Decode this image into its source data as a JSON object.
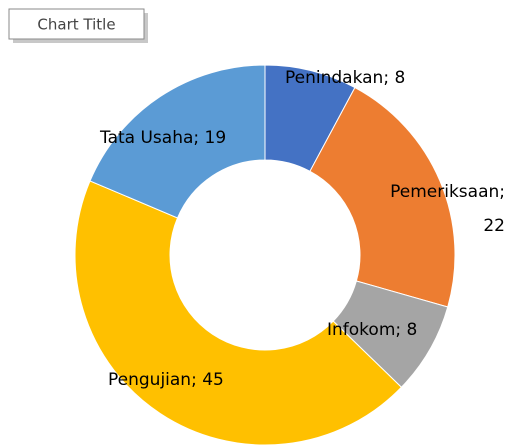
{
  "chart_data": {
    "type": "donut",
    "title": "Chart Title",
    "categories": [
      "Penindakan",
      "Pemeriksaan",
      "Infokom",
      "Pengujian",
      "Tata Usaha"
    ],
    "values": [
      8,
      22,
      8,
      45,
      19
    ],
    "value_labels": [
      "Penindakan; 8",
      "Pemeriksaan; 22",
      "Infokom; 8",
      "Pengujian; 45",
      "Tata Usaha; 19"
    ],
    "colors": [
      "#4472c4",
      "#ed7d31",
      "#a5a5a5",
      "#ffc000",
      "#5b9bd5"
    ]
  }
}
